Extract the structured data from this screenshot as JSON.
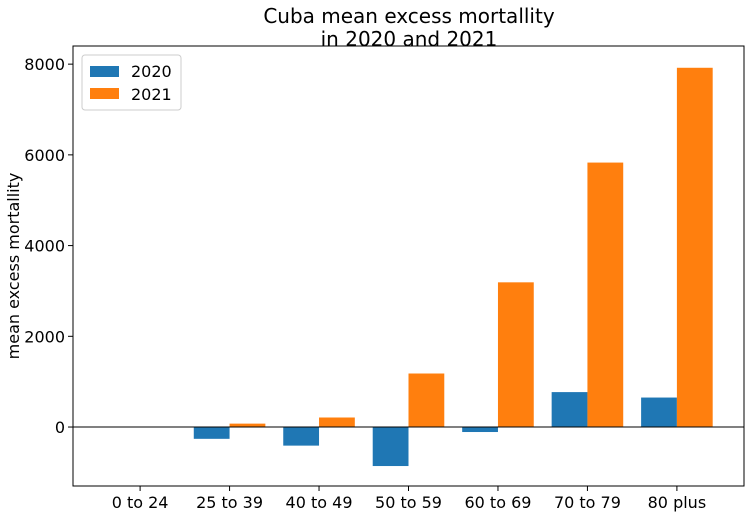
{
  "chart_data": {
    "type": "bar",
    "title_line1": "Cuba mean excess mortallity",
    "title_line2": "in 2020 and 2021",
    "xlabel": "",
    "ylabel": "mean excess mortallity",
    "categories": [
      "0 to 24",
      "25 to 39",
      "40 to 49",
      "50 to 59",
      "60 to 69",
      "70 to 79",
      "80 plus"
    ],
    "series": [
      {
        "name": "2020",
        "color": "#1f77b4",
        "values": [
          0,
          -260,
          -410,
          -860,
          -110,
          770,
          650
        ]
      },
      {
        "name": "2021",
        "color": "#ff7f0e",
        "values": [
          0,
          75,
          210,
          1180,
          3190,
          5830,
          7920
        ]
      }
    ],
    "ylim": [
      -1300,
      8400
    ],
    "yticks": [
      0,
      2000,
      4000,
      6000,
      8000
    ],
    "zero_line": true,
    "grid": false,
    "legend_position": "top-left"
  }
}
